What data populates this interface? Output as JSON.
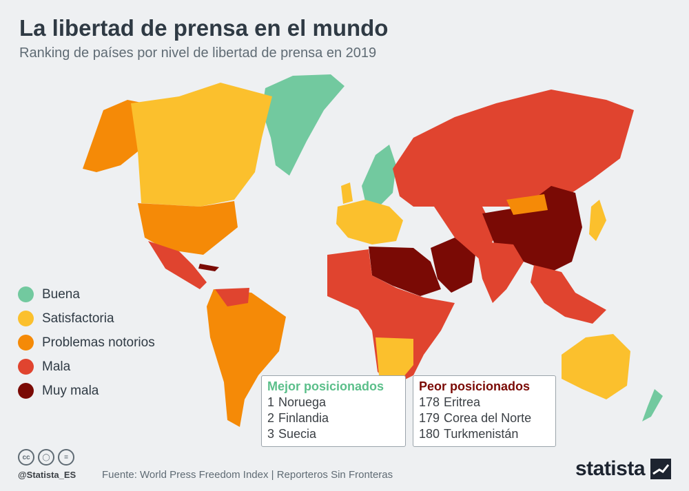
{
  "header": {
    "title": "La libertad de prensa en el mundo",
    "subtitle": "Ranking de países por nivel de libertad de prensa en 2019"
  },
  "colors": {
    "buena": "#72c99f",
    "satisfactoria": "#fbc02d",
    "problemas": "#f58a07",
    "mala": "#e0442f",
    "muy_mala": "#7a0a05",
    "best_title": "#5bbf8a",
    "worst_title": "#7a0a05"
  },
  "legend": [
    {
      "label": "Buena",
      "color": "#72c99f"
    },
    {
      "label": "Satisfactoria",
      "color": "#fbc02d"
    },
    {
      "label": "Problemas notorios",
      "color": "#f58a07"
    },
    {
      "label": "Mala",
      "color": "#e0442f"
    },
    {
      "label": "Muy mala",
      "color": "#7a0a05"
    }
  ],
  "best": {
    "title": "Mejor posicionados",
    "rows": [
      {
        "rank": "1",
        "country": "Noruega"
      },
      {
        "rank": "2",
        "country": "Finlandia"
      },
      {
        "rank": "3",
        "country": "Suecia"
      }
    ]
  },
  "worst": {
    "title": "Peor posicionados",
    "rows": [
      {
        "rank": "178",
        "country": "Eritrea"
      },
      {
        "rank": "179",
        "country": "Corea del Norte"
      },
      {
        "rank": "180",
        "country": "Turkmenistán"
      }
    ]
  },
  "footer": {
    "handle": "@Statista_ES",
    "source": "Fuente: World Press Freedom Index | Reporteros Sin Fronteras",
    "brand": "statista",
    "cc_icons": [
      "cc-icon",
      "by-icon",
      "nd-icon"
    ]
  }
}
